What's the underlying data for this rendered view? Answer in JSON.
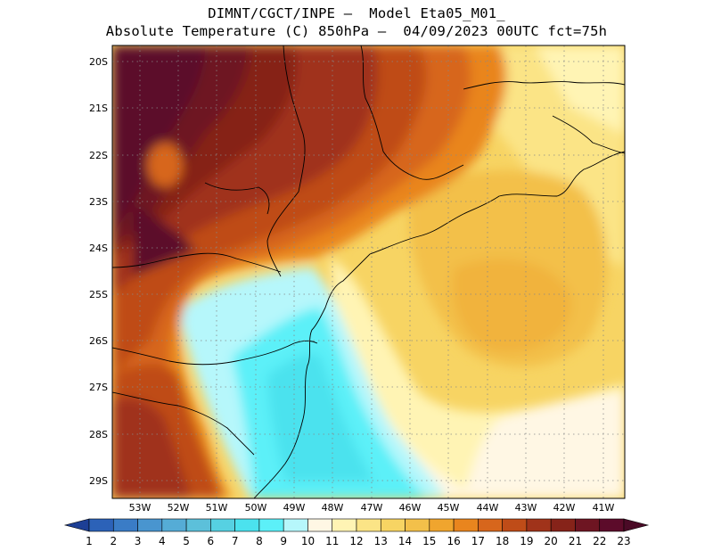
{
  "header": {
    "line1": "DIMNT/CGCT/INPE –  Model Eta05_M01_",
    "line2": "Absolute Temperature (C) 850hPa –  04/09/2023 00UTC fct=75h"
  },
  "axes": {
    "lat_labels": [
      "20S",
      "21S",
      "22S",
      "23S",
      "24S",
      "25S",
      "26S",
      "27S",
      "28S",
      "29S"
    ],
    "lon_labels": [
      "53W",
      "52W",
      "51W",
      "50W",
      "49W",
      "48W",
      "47W",
      "46W",
      "45W",
      "44W",
      "43W",
      "42W",
      "41W"
    ]
  },
  "colorbar": {
    "labels": [
      "1",
      "2",
      "3",
      "4",
      "5",
      "6",
      "7",
      "8",
      "9",
      "10",
      "11",
      "12",
      "13",
      "14",
      "15",
      "16",
      "17",
      "18",
      "19",
      "20",
      "21",
      "22",
      "23"
    ],
    "colors": [
      "#2049a8",
      "#2c62b8",
      "#3a7cc6",
      "#4995cf",
      "#55acd6",
      "#5cc0da",
      "#56d1e2",
      "#4be2ee",
      "#5cf0f8",
      "#b6f7fb",
      "#fff7e4",
      "#fff4b4",
      "#fbe486",
      "#f7d463",
      "#f3c04a",
      "#f0a52e",
      "#e9851e",
      "#d7661c",
      "#bf4c18",
      "#a0331a",
      "#862319",
      "#6e1522",
      "#5c0b2a"
    ],
    "arrow_left_color": "#1d3f95",
    "arrow_right_color": "#4a0a26"
  }
}
